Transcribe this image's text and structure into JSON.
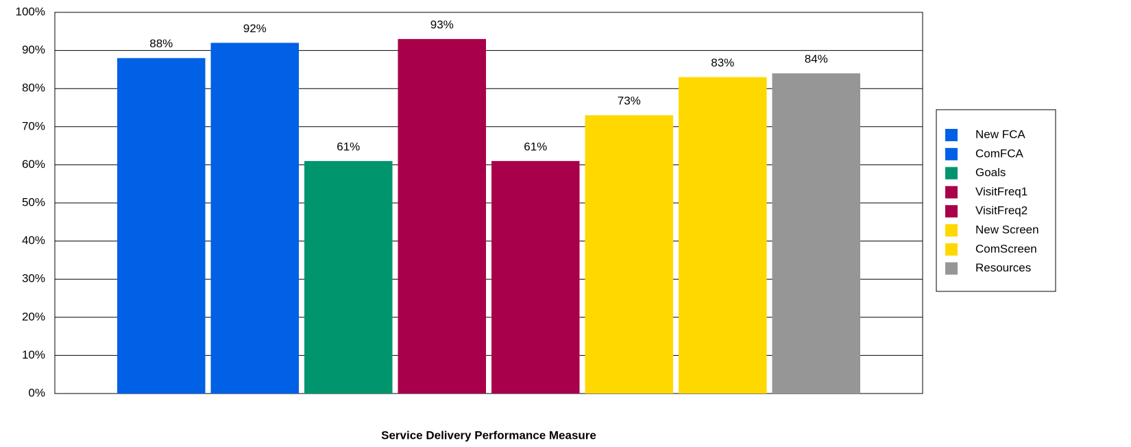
{
  "chart_data": {
    "type": "bar",
    "x_label": "Service Delivery Performance Measure",
    "categories": [
      null
    ],
    "series": [
      {
        "name": "New FCA",
        "color": "#0060e6",
        "values": [
          88
        ],
        "value_labels": [
          "88%"
        ]
      },
      {
        "name": "ComFCA",
        "color": "#0060e6",
        "values": [
          92
        ],
        "value_labels": [
          "92%"
        ]
      },
      {
        "name": "Goals",
        "color": "#00956d",
        "values": [
          61
        ],
        "value_labels": [
          "61%"
        ]
      },
      {
        "name": "VisitFreq1",
        "color": "#a8004a",
        "values": [
          93
        ],
        "value_labels": [
          "93%"
        ]
      },
      {
        "name": "VisitFreq2",
        "color": "#a8004a",
        "values": [
          61
        ],
        "value_labels": [
          "61%"
        ]
      },
      {
        "name": "New Screen",
        "color": "#ffd800",
        "values": [
          73
        ],
        "value_labels": [
          "73%"
        ]
      },
      {
        "name": "ComScreen",
        "color": "#ffd800",
        "values": [
          83
        ],
        "value_labels": [
          "83%"
        ]
      },
      {
        "name": "Resources",
        "color": "#969696",
        "values": [
          84
        ],
        "value_labels": [
          "84%"
        ]
      }
    ],
    "ylim": [
      0,
      100
    ],
    "yticks": [
      {
        "value": 0,
        "label": "0%"
      },
      {
        "value": 10,
        "label": "10%"
      },
      {
        "value": 20,
        "label": "20%"
      },
      {
        "value": 30,
        "label": "30%"
      },
      {
        "value": 40,
        "label": "40%"
      },
      {
        "value": 50,
        "label": "50%"
      },
      {
        "value": 60,
        "label": "60%"
      },
      {
        "value": 70,
        "label": "70%"
      },
      {
        "value": 80,
        "label": "80%"
      },
      {
        "value": 90,
        "label": "90%"
      },
      {
        "value": 100,
        "label": "100%"
      }
    ],
    "grid": true,
    "legend": "right"
  }
}
